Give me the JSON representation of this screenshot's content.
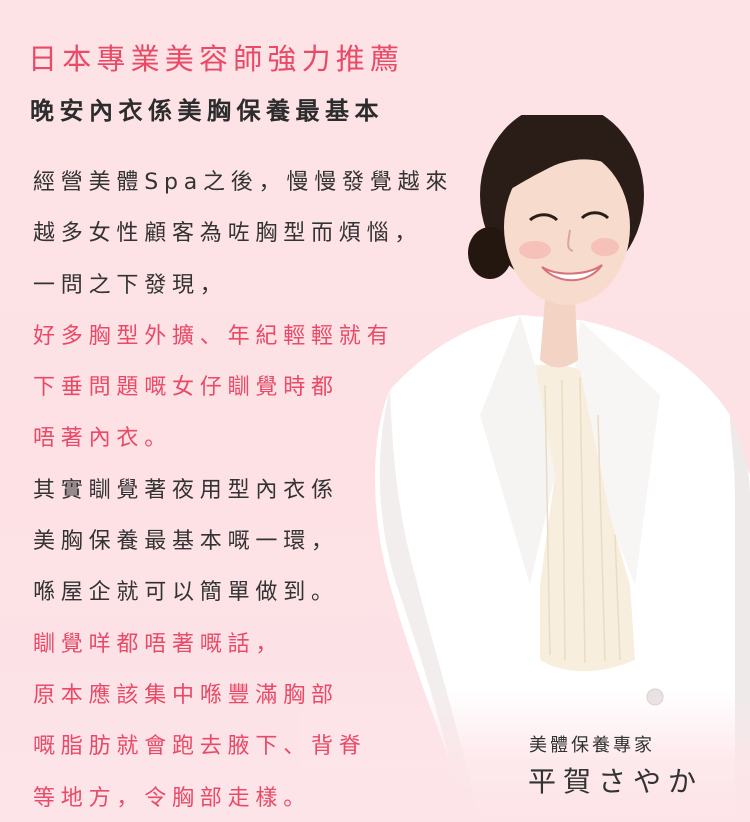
{
  "headline": "日本專業美容師強力推薦",
  "subheadline": "晚安內衣係美胸保養最基本",
  "body_lines": [
    {
      "text": "經營美體Spa之後，慢慢發覺越來",
      "highlight": false
    },
    {
      "text": "越多女性顧客為咗胸型而煩惱，",
      "highlight": false
    },
    {
      "text": "一問之下發現，",
      "highlight": false
    },
    {
      "text": "好多胸型外擴、年紀輕輕就有",
      "highlight": true
    },
    {
      "text": "下垂問題嘅女仔瞓覺時都",
      "highlight": true
    },
    {
      "text": "唔著內衣。",
      "highlight": true
    },
    {
      "text": "其實瞓覺著夜用型內衣係",
      "highlight": false
    },
    {
      "text": "美胸保養最基本嘅一環，",
      "highlight": false
    },
    {
      "text": "喺屋企就可以簡單做到。",
      "highlight": false
    },
    {
      "text": "瞓覺咩都唔著嘅話，",
      "highlight": true
    },
    {
      "text": "原本應該集中喺豐滿胸部",
      "highlight": true
    },
    {
      "text": "嘅脂肪就會跑去腋下、背脊",
      "highlight": true
    },
    {
      "text": "等地方，令胸部走樣。",
      "highlight": true
    }
  ],
  "caption": {
    "role": "美體保養專家",
    "name": "平賀さやか"
  },
  "colors": {
    "background": "#fde3e6",
    "accent_pink": "#e84a67",
    "text_dark": "#333333",
    "jacket_white": "#ffffff",
    "blouse_cream": "#f7eedd",
    "hair": "#2a1c16"
  }
}
